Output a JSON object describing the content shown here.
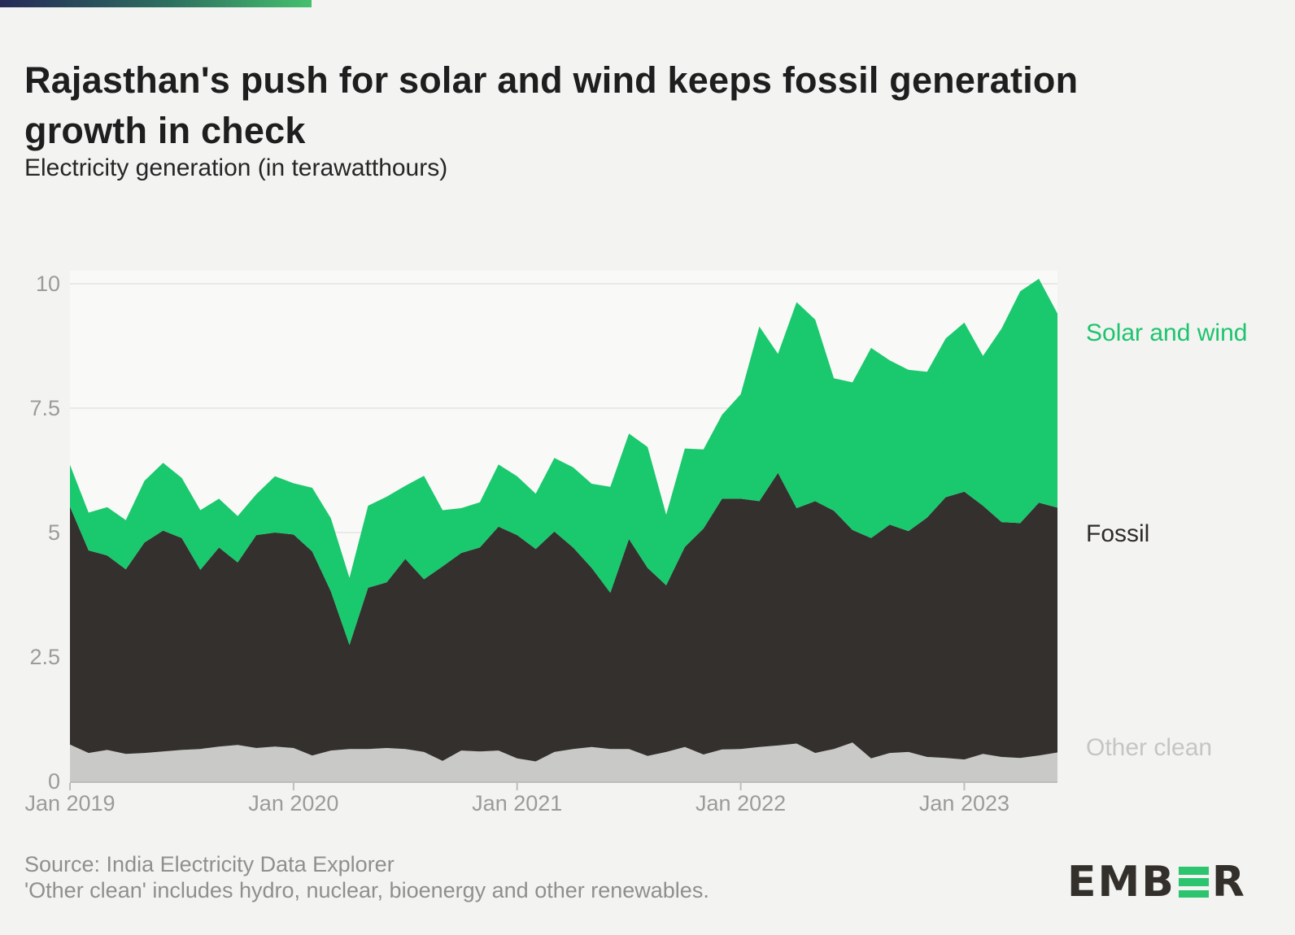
{
  "header": {
    "title": "Rajasthan's push for solar and wind keeps fossil generation\ngrowth in check",
    "subtitle": "Electricity generation (in terawatthours)"
  },
  "chart_data": {
    "type": "area",
    "stacked": true,
    "unit": "terawatthours",
    "title": "Electricity generation (in terawatthours)",
    "ylim": [
      0,
      10.3
    ],
    "y_ticks": [
      0,
      2.5,
      5,
      7.5,
      10
    ],
    "y_tick_labels": [
      "0",
      "2.5",
      "5",
      "7.5",
      "10"
    ],
    "x_tick_labels": [
      "Jan 2019",
      "Jan 2020",
      "Jan 2021",
      "Jan 2022",
      "Jan 2023"
    ],
    "x_tick_indices": [
      0,
      12,
      24,
      36,
      48
    ],
    "grid": "horizontal",
    "legend_position": "right",
    "months": [
      "Jan 2019",
      "Feb 2019",
      "Mar 2019",
      "Apr 2019",
      "May 2019",
      "Jun 2019",
      "Jul 2019",
      "Aug 2019",
      "Sep 2019",
      "Oct 2019",
      "Nov 2019",
      "Dec 2019",
      "Jan 2020",
      "Feb 2020",
      "Mar 2020",
      "Apr 2020",
      "May 2020",
      "Jun 2020",
      "Jul 2020",
      "Aug 2020",
      "Sep 2020",
      "Oct 2020",
      "Nov 2020",
      "Dec 2020",
      "Jan 2021",
      "Feb 2021",
      "Mar 2021",
      "Apr 2021",
      "May 2021",
      "Jun 2021",
      "Jul 2021",
      "Aug 2021",
      "Sep 2021",
      "Oct 2021",
      "Nov 2021",
      "Dec 2021",
      "Jan 2022",
      "Feb 2022",
      "Mar 2022",
      "Apr 2022",
      "May 2022",
      "Jun 2022",
      "Jul 2022",
      "Aug 2022",
      "Sep 2022",
      "Oct 2022",
      "Nov 2022",
      "Dec 2022",
      "Jan 2023",
      "Feb 2023",
      "Mar 2023",
      "Apr 2023",
      "May 2023",
      "Jun 2023"
    ],
    "series": [
      {
        "name": "Other clean",
        "color": "#c9c9c7",
        "values": [
          0.74,
          0.57,
          0.63,
          0.55,
          0.57,
          0.6,
          0.63,
          0.65,
          0.7,
          0.73,
          0.67,
          0.7,
          0.67,
          0.52,
          0.62,
          0.65,
          0.65,
          0.67,
          0.65,
          0.59,
          0.41,
          0.62,
          0.6,
          0.62,
          0.46,
          0.4,
          0.59,
          0.65,
          0.69,
          0.65,
          0.65,
          0.51,
          0.59,
          0.69,
          0.54,
          0.64,
          0.65,
          0.69,
          0.72,
          0.76,
          0.57,
          0.65,
          0.78,
          0.46,
          0.57,
          0.59,
          0.49,
          0.47,
          0.44,
          0.55,
          0.49,
          0.47,
          0.52,
          0.58
        ]
      },
      {
        "name": "Fossil",
        "color": "#33302e",
        "values": [
          4.78,
          4.07,
          3.91,
          3.71,
          4.23,
          4.44,
          4.26,
          3.6,
          4.0,
          3.67,
          4.28,
          4.3,
          4.29,
          4.1,
          3.2,
          2.09,
          3.24,
          3.33,
          3.82,
          3.47,
          3.91,
          3.97,
          4.1,
          4.5,
          4.49,
          4.27,
          4.43,
          4.05,
          3.6,
          3.14,
          4.22,
          3.78,
          3.35,
          4.02,
          4.54,
          5.04,
          5.03,
          4.94,
          5.48,
          4.73,
          5.06,
          4.79,
          4.27,
          4.43,
          4.59,
          4.44,
          4.81,
          5.24,
          5.38,
          4.99,
          4.72,
          4.72,
          5.08,
          4.92
        ]
      },
      {
        "name": "Solar and wind",
        "color": "#1ac86e",
        "values": [
          0.84,
          0.76,
          0.97,
          0.99,
          1.24,
          1.36,
          1.21,
          1.2,
          0.98,
          0.93,
          0.82,
          1.13,
          1.03,
          1.28,
          1.47,
          1.35,
          1.65,
          1.72,
          1.47,
          2.08,
          1.13,
          0.9,
          0.91,
          1.25,
          1.18,
          1.11,
          1.48,
          1.61,
          1.69,
          2.13,
          2.12,
          2.43,
          1.42,
          1.98,
          1.59,
          1.69,
          2.1,
          3.51,
          2.39,
          4.14,
          3.65,
          2.66,
          2.97,
          3.82,
          3.3,
          3.24,
          2.93,
          3.19,
          3.4,
          3.01,
          3.89,
          4.66,
          4.5,
          3.9
        ]
      }
    ]
  },
  "legend": {
    "items": [
      {
        "label": "Solar and wind",
        "color": "#1dc46d"
      },
      {
        "label": "Fossil",
        "color": "#2e2c2b"
      },
      {
        "label": "Other clean",
        "color": "#c5c5c3"
      }
    ]
  },
  "footer": {
    "source_line1": "Source: India Electricity Data Explorer",
    "source_line2": "'Other clean' includes hydro, nuclear, bioenergy and other renewables.",
    "logo_left": "EMB",
    "logo_right": "R"
  },
  "colors": {
    "background": "#f3f3f1",
    "plot_background": "#f9f9f7",
    "gridline": "#e4e4e2",
    "axis_line": "#bdbdbb",
    "tick_text": "#9b9b99",
    "title_text": "#1e1e1e",
    "logo_green": "#2cc46e",
    "logo_dark": "#33302c"
  }
}
